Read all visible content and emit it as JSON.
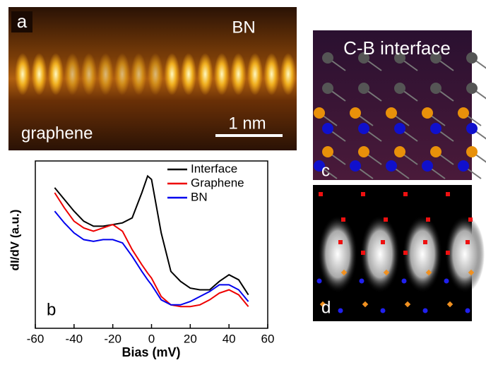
{
  "panel_a": {
    "label": "a",
    "top_material": "BN",
    "bottom_material": "graphene",
    "scale_bar": "1 nm"
  },
  "panel_c": {
    "label": "c",
    "title": "C-B interface"
  },
  "panel_d": {
    "label": "d"
  },
  "chart_data": {
    "type": "line",
    "panel_label": "b",
    "x_label": "Bias (mV)",
    "y_label": "dI/dV (a.u.)",
    "x": [
      -50,
      -45,
      -40,
      -35,
      -30,
      -25,
      -20,
      -15,
      -10,
      -5,
      -2,
      0,
      5,
      10,
      15,
      20,
      25,
      30,
      35,
      40,
      45,
      50
    ],
    "series": [
      {
        "name": "Interface",
        "color": "#000000",
        "values": [
          8.4,
          7.7,
          7.0,
          6.4,
          6.1,
          6.1,
          6.2,
          6.3,
          6.6,
          8.1,
          9.1,
          8.9,
          5.7,
          3.4,
          2.8,
          2.4,
          2.3,
          2.3,
          2.8,
          3.2,
          2.9,
          2.0
        ]
      },
      {
        "name": "Graphene",
        "color": "#ee0000",
        "values": [
          8.1,
          7.2,
          6.4,
          6.0,
          5.8,
          6.0,
          6.2,
          5.8,
          4.7,
          3.8,
          3.3,
          3.0,
          1.9,
          1.4,
          1.3,
          1.3,
          1.4,
          1.7,
          2.1,
          2.3,
          2.0,
          1.3
        ]
      },
      {
        "name": "BN",
        "color": "#0000ee",
        "values": [
          7.0,
          6.3,
          5.7,
          5.3,
          5.2,
          5.3,
          5.3,
          5.1,
          4.3,
          3.4,
          2.9,
          2.6,
          1.7,
          1.4,
          1.4,
          1.6,
          1.9,
          2.2,
          2.6,
          2.6,
          2.3,
          1.6
        ]
      }
    ],
    "xlim": [
      -60,
      60
    ],
    "xticks": [
      -60,
      -40,
      -20,
      0,
      20,
      40,
      60
    ],
    "ylim": [
      0,
      10
    ],
    "legend": "upper right"
  }
}
